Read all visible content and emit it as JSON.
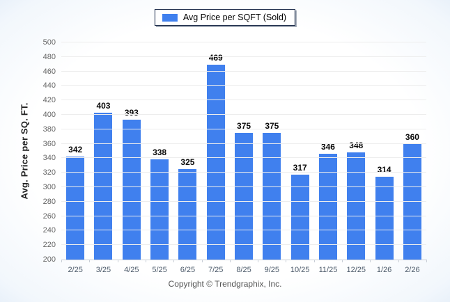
{
  "chart_data": {
    "type": "bar",
    "title": "",
    "categories": [
      "2/25",
      "3/25",
      "4/25",
      "5/25",
      "6/25",
      "7/25",
      "8/25",
      "9/25",
      "10/25",
      "11/25",
      "12/25",
      "1/26",
      "2/26"
    ],
    "series": [
      {
        "name": "Avg Price per SQFT (Sold)",
        "values": [
          342,
          403,
          393,
          338,
          325,
          469,
          375,
          375,
          317,
          346,
          348,
          314,
          360
        ],
        "color": "#4080ee"
      }
    ],
    "xlabel": "",
    "ylabel": "Avg. Price per SQ. FT.",
    "ylim": [
      200,
      500
    ],
    "ytick_step": 20,
    "grid": true,
    "legend_position": "top-center"
  },
  "footer": {
    "copyright": "Copyright © Trendgraphix, Inc."
  },
  "colors": {
    "bar": "#4080ee",
    "gridline": "#ededed",
    "axis_line": "#c9ced6",
    "value_label": "#0a0a0a",
    "x_label": "#4a5868",
    "y_label": "#666666",
    "legend_border": "#1c2b4a"
  }
}
